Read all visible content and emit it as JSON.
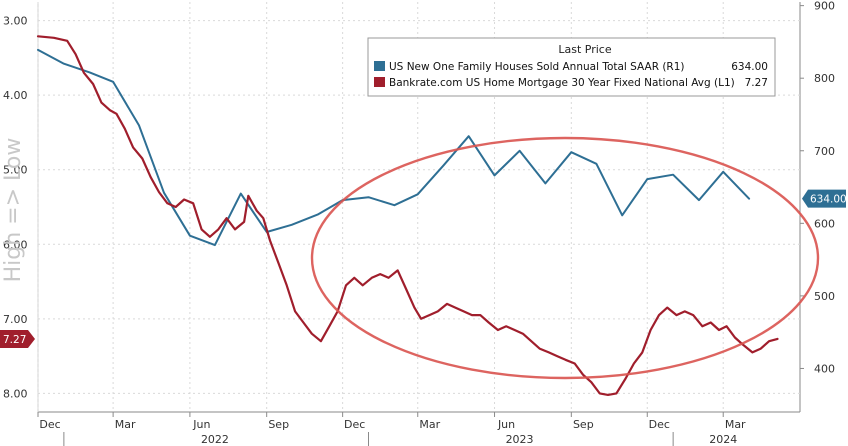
{
  "chart_data": {
    "type": "line",
    "legend": {
      "header": "Last Price",
      "placement": "top-right",
      "entries": [
        {
          "label": "US New One Family Houses Sold Annual Total SAAR  (R1)",
          "last": "634.00",
          "color": "#2e6f94"
        },
        {
          "label": "Bankrate.com US Home Mortgage 30 Year Fixed National Avg  (L1)",
          "last": "7.27",
          "color": "#a01e2c"
        }
      ]
    },
    "side_label": "High => Low",
    "left_axis": {
      "ticks": [
        "3.00",
        "4.00",
        "5.00",
        "6.00",
        "7.00",
        "8.00"
      ],
      "range": [
        2.75,
        8.25
      ],
      "inverted": true
    },
    "right_axis": {
      "ticks": [
        "900",
        "800",
        "700",
        "600",
        "500",
        "400"
      ],
      "range": [
        340,
        905
      ]
    },
    "x_axis": {
      "months": [
        "Dec",
        "Mar",
        "Jun",
        "Sep",
        "Dec",
        "Mar",
        "Jun",
        "Sep",
        "Dec",
        "Mar"
      ],
      "years": [
        "2022",
        "2023",
        "2024"
      ],
      "start": "2021-12-01",
      "end": "2024-06-01"
    },
    "series": [
      {
        "name": "US New One Family Houses Sold Annual Total SAAR",
        "axis": "right",
        "color": "#2e6f94",
        "last_tag": "634.00",
        "points": [
          [
            "2021-12-01",
            839
          ],
          [
            "2022-01-01",
            820
          ],
          [
            "2022-02-01",
            808
          ],
          [
            "2022-03-01",
            795
          ],
          [
            "2022-04-01",
            735
          ],
          [
            "2022-05-01",
            642
          ],
          [
            "2022-06-01",
            583
          ],
          [
            "2022-07-01",
            570
          ],
          [
            "2022-08-01",
            641
          ],
          [
            "2022-09-01",
            588
          ],
          [
            "2022-10-01",
            598
          ],
          [
            "2022-11-01",
            612
          ],
          [
            "2022-12-01",
            632
          ],
          [
            "2023-01-01",
            636
          ],
          [
            "2023-02-01",
            625
          ],
          [
            "2023-03-01",
            640
          ],
          [
            "2023-04-01",
            680
          ],
          [
            "2023-05-01",
            720
          ],
          [
            "2023-06-01",
            666
          ],
          [
            "2023-07-01",
            700
          ],
          [
            "2023-08-01",
            655
          ],
          [
            "2023-09-01",
            698
          ],
          [
            "2023-10-01",
            682
          ],
          [
            "2023-11-01",
            611
          ],
          [
            "2023-12-01",
            661
          ],
          [
            "2024-01-01",
            667
          ],
          [
            "2024-02-01",
            632
          ],
          [
            "2024-03-01",
            671
          ],
          [
            "2024-04-01",
            634
          ]
        ]
      },
      {
        "name": "Bankrate.com US Home Mortgage 30 Year Fixed National Avg",
        "axis": "left",
        "color": "#a01e2c",
        "last_tag": "7.27",
        "points": [
          [
            "2021-12-01",
            3.21
          ],
          [
            "2021-12-20",
            3.23
          ],
          [
            "2022-01-05",
            3.27
          ],
          [
            "2022-01-15",
            3.45
          ],
          [
            "2022-01-25",
            3.7
          ],
          [
            "2022-02-05",
            3.85
          ],
          [
            "2022-02-15",
            4.1
          ],
          [
            "2022-02-25",
            4.2
          ],
          [
            "2022-03-05",
            4.25
          ],
          [
            "2022-03-15",
            4.45
          ],
          [
            "2022-03-25",
            4.7
          ],
          [
            "2022-04-05",
            4.85
          ],
          [
            "2022-04-15",
            5.1
          ],
          [
            "2022-04-25",
            5.3
          ],
          [
            "2022-05-05",
            5.45
          ],
          [
            "2022-05-15",
            5.5
          ],
          [
            "2022-05-25",
            5.4
          ],
          [
            "2022-06-05",
            5.45
          ],
          [
            "2022-06-15",
            5.8
          ],
          [
            "2022-06-25",
            5.9
          ],
          [
            "2022-07-05",
            5.8
          ],
          [
            "2022-07-15",
            5.65
          ],
          [
            "2022-07-25",
            5.8
          ],
          [
            "2022-08-05",
            5.7
          ],
          [
            "2022-08-10",
            5.35
          ],
          [
            "2022-08-20",
            5.55
          ],
          [
            "2022-08-28",
            5.65
          ],
          [
            "2022-09-05",
            5.95
          ],
          [
            "2022-09-15",
            6.25
          ],
          [
            "2022-09-25",
            6.55
          ],
          [
            "2022-10-05",
            6.9
          ],
          [
            "2022-10-15",
            7.05
          ],
          [
            "2022-10-25",
            7.2
          ],
          [
            "2022-11-05",
            7.3
          ],
          [
            "2022-11-15",
            7.1
          ],
          [
            "2022-11-25",
            6.9
          ],
          [
            "2022-12-05",
            6.55
          ],
          [
            "2022-12-15",
            6.45
          ],
          [
            "2022-12-25",
            6.55
          ],
          [
            "2023-01-05",
            6.45
          ],
          [
            "2023-01-15",
            6.4
          ],
          [
            "2023-01-25",
            6.45
          ],
          [
            "2023-02-05",
            6.35
          ],
          [
            "2023-02-15",
            6.6
          ],
          [
            "2023-02-25",
            6.85
          ],
          [
            "2023-03-05",
            7.0
          ],
          [
            "2023-03-15",
            6.95
          ],
          [
            "2023-03-25",
            6.9
          ],
          [
            "2023-04-05",
            6.8
          ],
          [
            "2023-04-15",
            6.85
          ],
          [
            "2023-04-25",
            6.9
          ],
          [
            "2023-05-05",
            6.95
          ],
          [
            "2023-05-15",
            6.95
          ],
          [
            "2023-05-25",
            7.05
          ],
          [
            "2023-06-05",
            7.15
          ],
          [
            "2023-06-15",
            7.1
          ],
          [
            "2023-06-25",
            7.15
          ],
          [
            "2023-07-05",
            7.2
          ],
          [
            "2023-07-15",
            7.3
          ],
          [
            "2023-07-25",
            7.4
          ],
          [
            "2023-08-05",
            7.45
          ],
          [
            "2023-08-15",
            7.5
          ],
          [
            "2023-08-25",
            7.55
          ],
          [
            "2023-09-05",
            7.6
          ],
          [
            "2023-09-15",
            7.75
          ],
          [
            "2023-09-25",
            7.85
          ],
          [
            "2023-10-05",
            8.0
          ],
          [
            "2023-10-15",
            8.02
          ],
          [
            "2023-10-25",
            8.0
          ],
          [
            "2023-11-05",
            7.8
          ],
          [
            "2023-11-15",
            7.6
          ],
          [
            "2023-11-25",
            7.45
          ],
          [
            "2023-12-05",
            7.15
          ],
          [
            "2023-12-15",
            6.95
          ],
          [
            "2023-12-25",
            6.85
          ],
          [
            "2024-01-05",
            6.95
          ],
          [
            "2024-01-15",
            6.9
          ],
          [
            "2024-01-25",
            6.95
          ],
          [
            "2024-02-05",
            7.1
          ],
          [
            "2024-02-15",
            7.05
          ],
          [
            "2024-02-25",
            7.15
          ],
          [
            "2024-03-05",
            7.1
          ],
          [
            "2024-03-15",
            7.25
          ],
          [
            "2024-03-25",
            7.35
          ],
          [
            "2024-04-05",
            7.45
          ],
          [
            "2024-04-15",
            7.4
          ],
          [
            "2024-04-25",
            7.3
          ],
          [
            "2024-05-05",
            7.27
          ]
        ]
      }
    ],
    "annotation": {
      "shape": "ellipse",
      "color": "#d9534f"
    },
    "grid": true
  }
}
